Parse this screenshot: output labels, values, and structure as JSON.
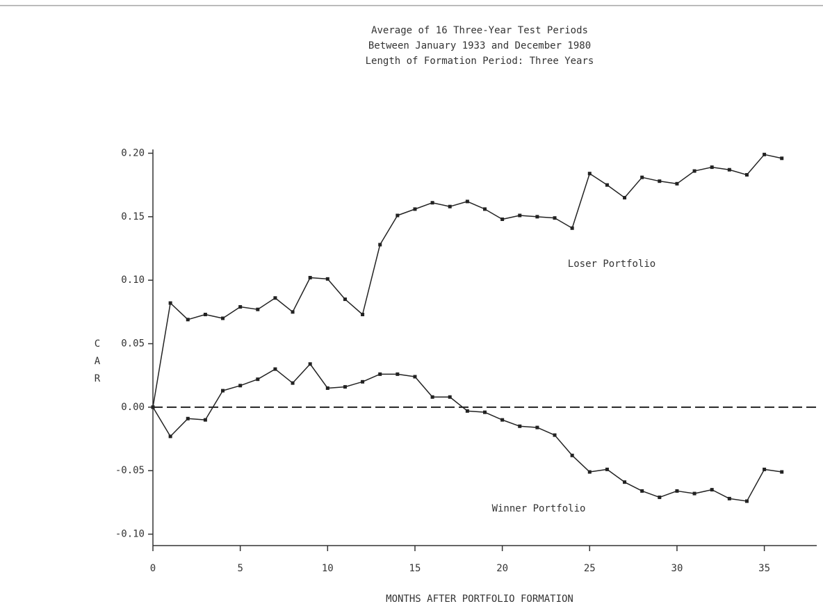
{
  "chart_data": {
    "type": "line",
    "title": [
      "Average of 16 Three-Year Test Periods",
      "Between January 1933 and December 1980",
      "Length of Formation Period:  Three Years"
    ],
    "x_label": "MONTHS AFTER PORTFOLIO FORMATION",
    "y_label": "CAR",
    "x": [
      0,
      1,
      2,
      3,
      4,
      5,
      6,
      7,
      8,
      9,
      10,
      11,
      12,
      13,
      14,
      15,
      16,
      17,
      18,
      19,
      20,
      21,
      22,
      23,
      24,
      25,
      26,
      27,
      28,
      29,
      30,
      31,
      32,
      33,
      34,
      35,
      36
    ],
    "series": [
      {
        "name": "Loser Portfolio",
        "color": "#222222",
        "values": [
          0.0,
          0.082,
          0.069,
          0.073,
          0.07,
          0.079,
          0.077,
          0.086,
          0.075,
          0.102,
          0.101,
          0.085,
          0.073,
          0.128,
          0.151,
          0.156,
          0.161,
          0.158,
          0.162,
          0.156,
          0.148,
          0.151,
          0.15,
          0.149,
          0.141,
          0.184,
          0.175,
          0.165,
          0.181,
          0.178,
          0.176,
          0.186,
          0.189,
          0.187,
          0.183,
          0.199,
          0.196
        ]
      },
      {
        "name": "Winner Portfolio",
        "color": "#222222",
        "values": [
          0.0,
          -0.023,
          -0.009,
          -0.01,
          0.013,
          0.017,
          0.022,
          0.03,
          0.019,
          0.034,
          0.015,
          0.016,
          0.02,
          0.026,
          0.026,
          0.024,
          0.008,
          0.008,
          -0.003,
          -0.004,
          -0.01,
          -0.015,
          -0.016,
          -0.022,
          -0.038,
          -0.051,
          -0.049,
          -0.059,
          -0.066,
          -0.071,
          -0.066,
          -0.068,
          -0.065,
          -0.072,
          -0.074,
          -0.049,
          -0.051
        ]
      }
    ],
    "xlim": [
      0,
      38
    ],
    "xticks": [
      0,
      5,
      10,
      15,
      20,
      25,
      30,
      35
    ],
    "ylim": [
      -0.109,
      0.203
    ],
    "yticks": [
      {
        "value": 0.2,
        "label": "0.20"
      },
      0.15,
      {
        "value": 0.1,
        "label": "0.10"
      },
      0.05,
      {
        "value": 0,
        "label": "0.00"
      },
      -0.05,
      {
        "value": -0.1,
        "label": "-0.10"
      }
    ],
    "hline": 0,
    "grid": false
  }
}
